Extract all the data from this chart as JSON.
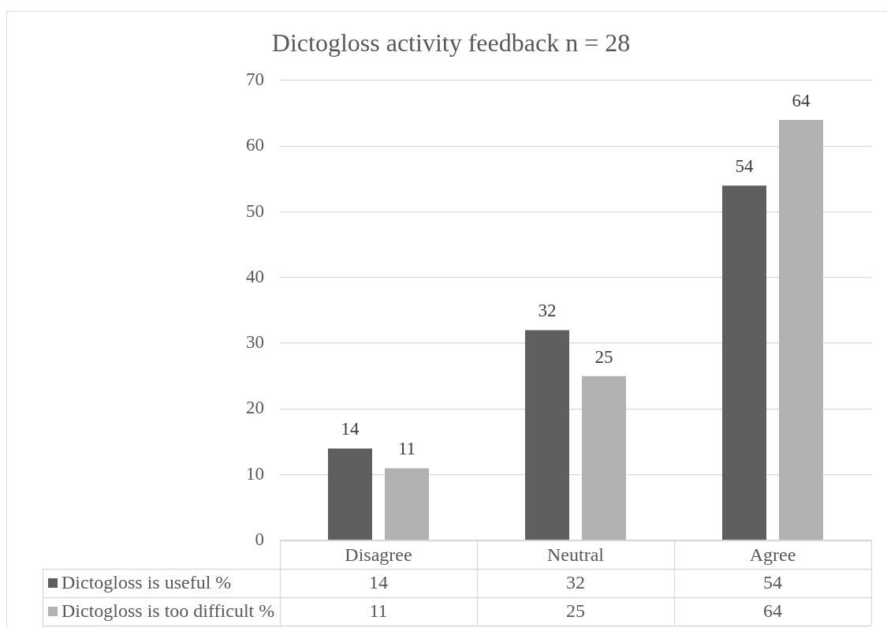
{
  "chart_data": {
    "type": "bar",
    "title": "Dictogloss activity feedback n = 28",
    "categories": [
      "Disagree",
      "Neutral",
      "Agree"
    ],
    "series": [
      {
        "name": "Dictogloss is useful %",
        "color": "#5f5f5f",
        "values": [
          14,
          32,
          54
        ]
      },
      {
        "name": "Dictogloss is too difficult %",
        "color": "#b2b2b2",
        "values": [
          11,
          25,
          64
        ]
      }
    ],
    "ylim": [
      0,
      70
    ],
    "yticks": [
      0,
      10,
      20,
      30,
      40,
      50,
      60,
      70
    ],
    "grid": "y",
    "legend": "bottom",
    "data_labels": true,
    "annotations": [
      "14",
      "32",
      "54",
      "11",
      "25",
      "64"
    ]
  }
}
